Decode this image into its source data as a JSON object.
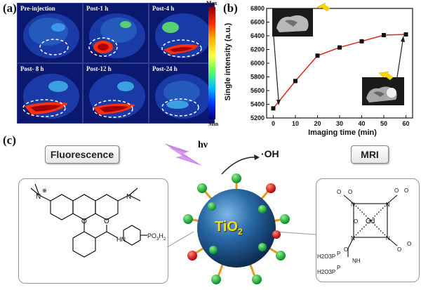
{
  "panel_labels": {
    "a": "(a)",
    "b": "(b)",
    "c": "(c)"
  },
  "panel_a": {
    "tiles": [
      "Pre-injection",
      "Post-1 h",
      "Post-4 h",
      "Post- 8 h",
      "Post-12 h",
      "Post-24 h"
    ],
    "colorbar_max": "Max",
    "colorbar_min": "Min"
  },
  "chart_data": {
    "type": "line",
    "x": [
      0,
      10,
      20,
      30,
      40,
      50,
      60
    ],
    "series": [
      {
        "values": [
          5340,
          5740,
          6110,
          6230,
          6320,
          6410,
          6420
        ],
        "color": "#e0241c"
      }
    ],
    "xlabel": "Imaging time (min)",
    "ylabel": "Single intensity (a.u.)",
    "xlim": [
      -3,
      63
    ],
    "ylim": [
      5200,
      6800
    ],
    "xticks": [
      "0",
      "10",
      "20",
      "30",
      "40",
      "50",
      "60"
    ],
    "yticks": [
      "5200",
      "5400",
      "5600",
      "5800",
      "6000",
      "6200",
      "6400",
      "6600",
      "6800"
    ],
    "grid": false
  },
  "panel_c": {
    "fluorescence_label": "Fluorescence",
    "mri_label": "MRI",
    "hv": "hν",
    "oh": "·OH",
    "core_label": "TiO",
    "core_sub": "2",
    "rhodamine": {
      "n_left": "N",
      "charge": "⊕",
      "o_ring": "O",
      "n_right": "N",
      "amide_o": "O",
      "amide_nh": "HN",
      "po3h2": "PO",
      "po3h2_sub": "3",
      "po3h2_h": "H",
      "po3h2_sub2": "2"
    },
    "gd_complex": {
      "gd": "Gd",
      "n_labels": [
        "N",
        "N",
        "N",
        "N"
      ],
      "o_labels": [
        "O",
        "O",
        "O",
        "O",
        "O",
        "O",
        "O"
      ],
      "amide_o": "O",
      "nh": "NH",
      "p_labels": [
        "P",
        "P"
      ],
      "h2o3p_top": "H2O3P",
      "h2o3p_bottom": "H2O3P"
    }
  }
}
